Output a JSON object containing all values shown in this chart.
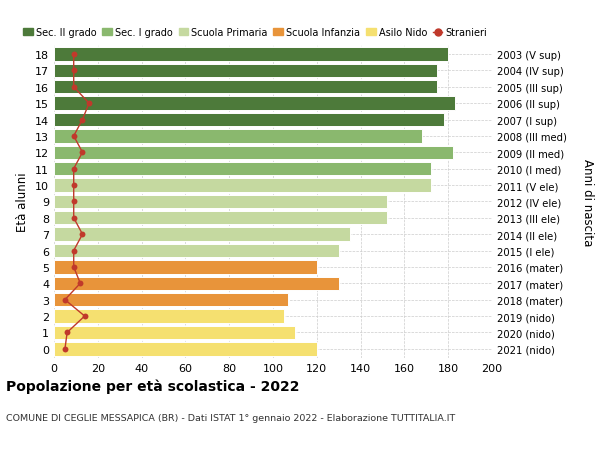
{
  "ages": [
    0,
    1,
    2,
    3,
    4,
    5,
    6,
    7,
    8,
    9,
    10,
    11,
    12,
    13,
    14,
    15,
    16,
    17,
    18
  ],
  "bar_values": [
    120,
    110,
    105,
    107,
    130,
    120,
    130,
    135,
    152,
    152,
    172,
    172,
    182,
    168,
    178,
    183,
    175,
    175,
    180
  ],
  "stranieri": [
    5,
    6,
    14,
    5,
    12,
    9,
    9,
    13,
    9,
    9,
    9,
    9,
    13,
    9,
    13,
    16,
    9,
    9,
    9
  ],
  "right_labels": [
    "2021 (nido)",
    "2020 (nido)",
    "2019 (nido)",
    "2018 (mater)",
    "2017 (mater)",
    "2016 (mater)",
    "2015 (I ele)",
    "2014 (II ele)",
    "2013 (III ele)",
    "2012 (IV ele)",
    "2011 (V ele)",
    "2010 (I med)",
    "2009 (II med)",
    "2008 (III med)",
    "2007 (I sup)",
    "2006 (II sup)",
    "2005 (III sup)",
    "2004 (IV sup)",
    "2003 (V sup)"
  ],
  "bar_colors": [
    "#f5e070",
    "#f5e070",
    "#f5e070",
    "#e8943a",
    "#e8943a",
    "#e8943a",
    "#c5d9a0",
    "#c5d9a0",
    "#c5d9a0",
    "#c5d9a0",
    "#c5d9a0",
    "#8ab86e",
    "#8ab86e",
    "#8ab86e",
    "#4d7a3a",
    "#4d7a3a",
    "#4d7a3a",
    "#4d7a3a",
    "#4d7a3a"
  ],
  "legend_labels": [
    "Sec. II grado",
    "Sec. I grado",
    "Scuola Primaria",
    "Scuola Infanzia",
    "Asilo Nido",
    "Stranieri"
  ],
  "legend_colors": [
    "#4d7a3a",
    "#8ab86e",
    "#c5d9a0",
    "#e8943a",
    "#f5e070",
    "#c0392b"
  ],
  "title": "Popolazione per età scolastica - 2022",
  "subtitle": "COMUNE DI CEGLIE MESSAPICA (BR) - Dati ISTAT 1° gennaio 2022 - Elaborazione TUTTITALIA.IT",
  "ylabel": "Età alunni",
  "right_ylabel": "Anni di nascita",
  "xlim": [
    0,
    200
  ],
  "xticks": [
    0,
    20,
    40,
    60,
    80,
    100,
    120,
    140,
    160,
    180,
    200
  ],
  "bar_height": 0.82,
  "background_color": "#ffffff",
  "grid_color": "#cccccc"
}
